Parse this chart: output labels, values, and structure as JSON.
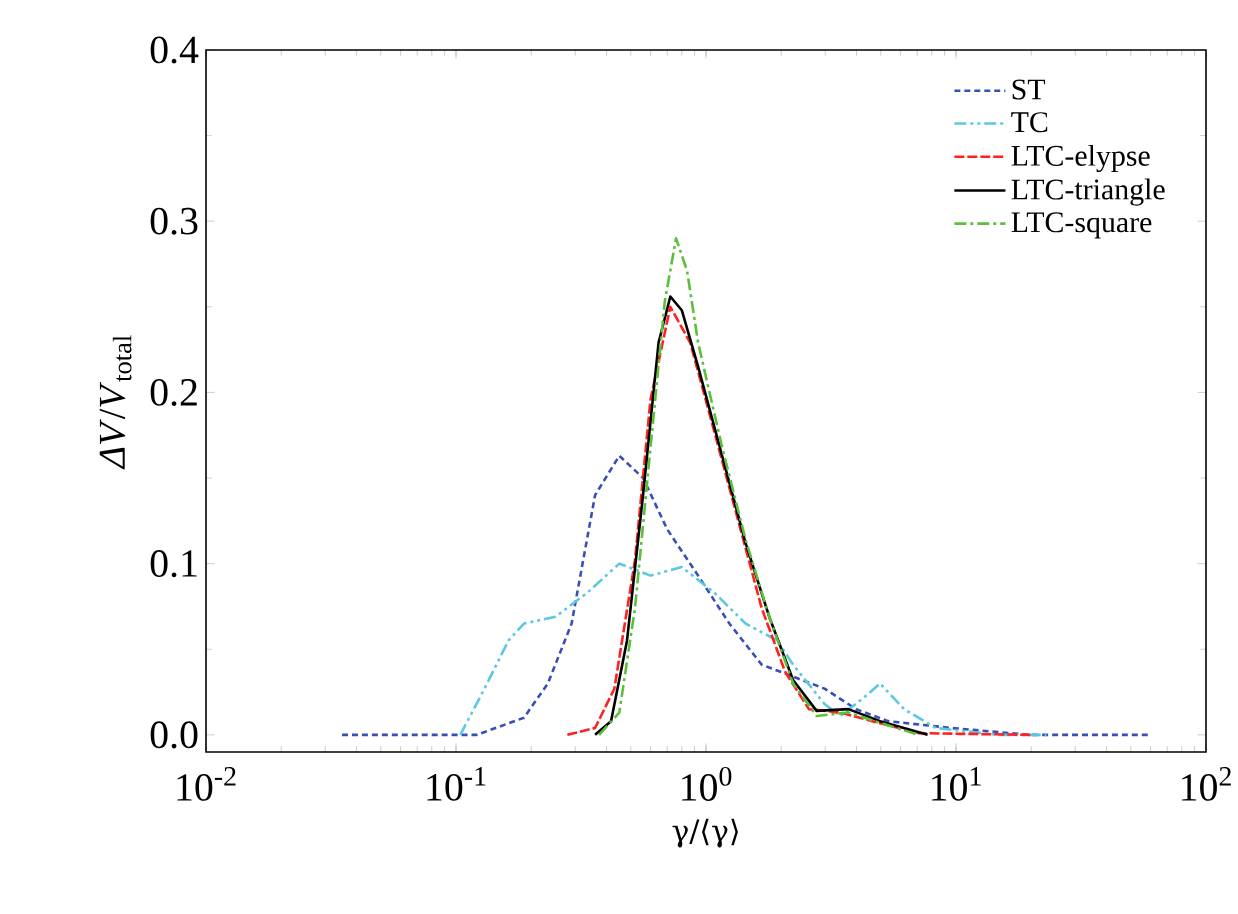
{
  "chart_data": {
    "type": "line",
    "xlabel": "γ/⟨γ⟩",
    "ylabel": "*ΔV*/*V*$_{total}$",
    "log": "x",
    "xlim": [
      0.01,
      100
    ],
    "ylim": [
      -0.01,
      0.4
    ],
    "xticks": [
      {
        "value": 0.01,
        "label": "10$^{-2}$"
      },
      {
        "value": 0.1,
        "label": "10$^{-1}$"
      },
      {
        "value": 1,
        "label": "10$^{0}$"
      },
      {
        "value": 10,
        "label": "10$^{1}$"
      },
      {
        "value": 100,
        "label": "10$^{2}$"
      }
    ],
    "yticks": [
      {
        "value": 0,
        "label": "0.0"
      },
      {
        "value": 0.1,
        "label": "0.1"
      },
      {
        "value": 0.2,
        "label": "0.2"
      },
      {
        "value": 0.3,
        "label": "0.3"
      },
      {
        "value": 0.4,
        "label": "0.4"
      }
    ],
    "grid": false,
    "legend": "top right",
    "marker": "none",
    "series": [
      {
        "name": "ST",
        "color": "#3a4fb5",
        "line_style": "dotted",
        "x": [
          0.035,
          0.121,
          0.187,
          0.233,
          0.29,
          0.36,
          0.45,
          0.56,
          0.7,
          0.93,
          1.24,
          1.67,
          2.23,
          2.98,
          3.99,
          5.35,
          9.6,
          19.8,
          59
        ],
        "values": [
          0,
          0,
          0.01,
          0.03,
          0.065,
          0.14,
          0.163,
          0.15,
          0.12,
          0.093,
          0.065,
          0.041,
          0.034,
          0.027,
          0.015,
          0.008,
          0.004,
          0,
          0
        ]
      },
      {
        "name": "TC",
        "color": "#5bc8e0",
        "line_style": "dashdotdot",
        "x": [
          0.104,
          0.13,
          0.162,
          0.187,
          0.25,
          0.335,
          0.45,
          0.6,
          0.8,
          1.08,
          1.44,
          1.93,
          2.23,
          2.98,
          3.45,
          4.3,
          4.97,
          6.2,
          8.3,
          14.8,
          23
        ],
        "values": [
          0,
          0.027,
          0.055,
          0.065,
          0.069,
          0.083,
          0.1,
          0.093,
          0.098,
          0.083,
          0.065,
          0.055,
          0.041,
          0.018,
          0.011,
          0.022,
          0.03,
          0.015,
          0.004,
          0,
          0
        ]
      },
      {
        "name": "LTC-elypse",
        "color": "#ff2020",
        "line_style": "dashed",
        "x": [
          0.279,
          0.36,
          0.43,
          0.52,
          0.6,
          0.72,
          0.865,
          1.08,
          1.34,
          1.67,
          2.07,
          2.58,
          3.45,
          4.62,
          7.1,
          19.8
        ],
        "values": [
          0,
          0.004,
          0.027,
          0.102,
          0.196,
          0.25,
          0.229,
          0.177,
          0.126,
          0.074,
          0.037,
          0.015,
          0.013,
          0.008,
          0.001,
          0
        ]
      },
      {
        "name": "LTC-triangle",
        "color": "#000000",
        "line_style": "solid",
        "x": [
          0.36,
          0.417,
          0.483,
          0.56,
          0.646,
          0.72,
          0.8,
          0.93,
          1.16,
          1.44,
          1.79,
          2.23,
          2.77,
          3.71,
          4.97,
          7.7
        ],
        "values": [
          0,
          0.008,
          0.055,
          0.14,
          0.229,
          0.256,
          0.248,
          0.215,
          0.163,
          0.112,
          0.069,
          0.032,
          0.014,
          0.015,
          0.008,
          0
        ]
      },
      {
        "name": "LTC-square",
        "color": "#5cbf3a",
        "line_style": "dashdot",
        "x": [
          0.374,
          0.45,
          0.52,
          0.6,
          0.684,
          0.759,
          0.84,
          0.93,
          1.16,
          1.44,
          1.79,
          2.23,
          2.77,
          3.71,
          4.97,
          7.1
        ],
        "values": [
          0,
          0.013,
          0.074,
          0.168,
          0.253,
          0.29,
          0.271,
          0.229,
          0.168,
          0.114,
          0.069,
          0.03,
          0.011,
          0.013,
          0.007,
          0
        ]
      }
    ]
  }
}
